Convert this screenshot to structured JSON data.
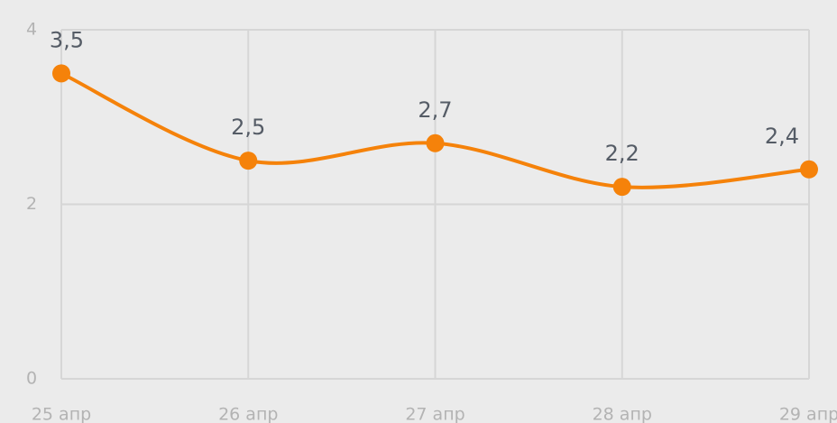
{
  "chart_data": {
    "type": "line",
    "categories": [
      "25 апр",
      "26 апр",
      "27 апр",
      "28 апр",
      "29 апр"
    ],
    "series": [
      {
        "color": "#f5820a",
        "values": [
          3.5,
          2.5,
          2.7,
          2.2,
          2.4
        ],
        "value_labels": [
          "3,5",
          "2,5",
          "2,7",
          "2,2",
          "2,4"
        ]
      }
    ],
    "ylim": [
      0,
      4
    ],
    "yticks": [
      0,
      2,
      4
    ],
    "grid": true
  }
}
